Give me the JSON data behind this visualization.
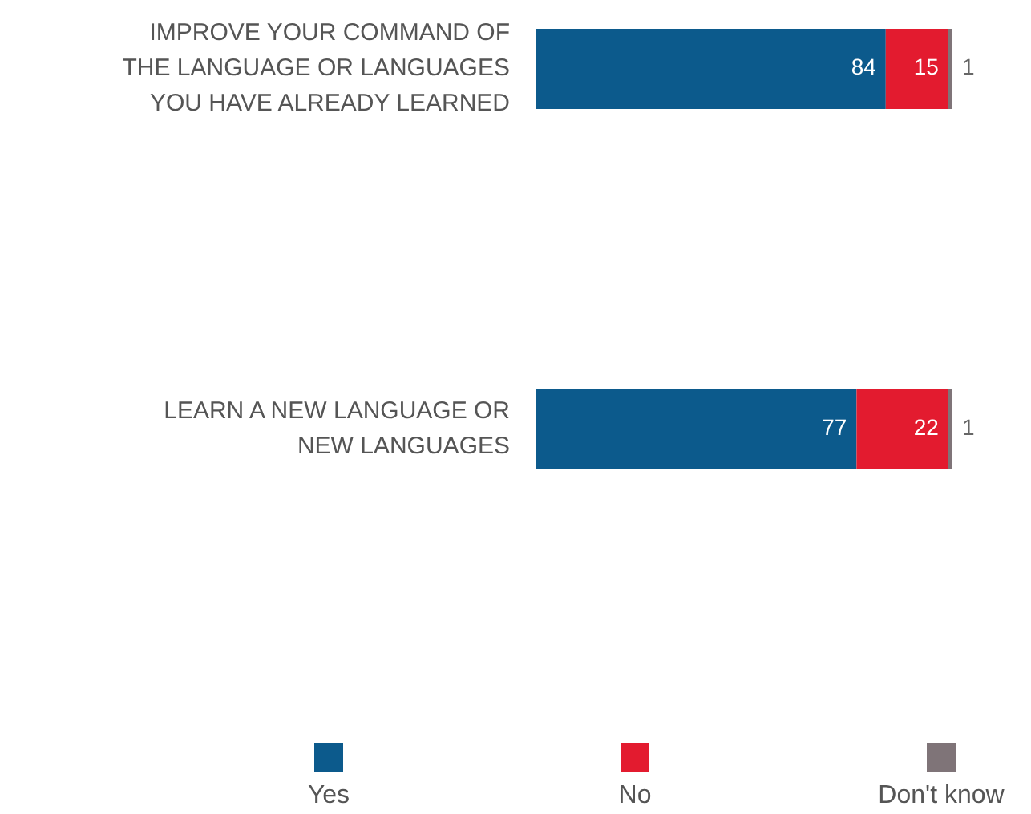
{
  "chart_data": {
    "type": "bar",
    "orientation": "horizontal",
    "stacked": true,
    "data_labels": true,
    "legend": "bottom",
    "categories": [
      "IMPROVE YOUR COMMAND OF THE LANGUAGE OR LANGUAGES YOU HAVE ALREADY LEARNED",
      "LEARN A NEW LANGUAGE OR NEW LANGUAGES"
    ],
    "series": [
      {
        "name": "Yes",
        "color": "#0c5a8c",
        "values": [
          84,
          77
        ]
      },
      {
        "name": "No",
        "color": "#e31b2f",
        "values": [
          15,
          22
        ]
      },
      {
        "name": "Don't know",
        "color": "#7f7478",
        "values": [
          1,
          1
        ]
      }
    ]
  }
}
